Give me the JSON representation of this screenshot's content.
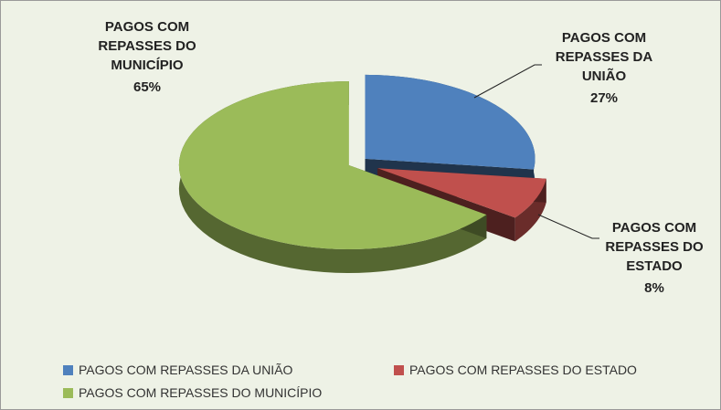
{
  "chart_data": {
    "type": "pie",
    "categories": [
      "PAGOS COM REPASSES DA UNIÃO",
      "PAGOS COM REPASSES DO ESTADO",
      "PAGOS COM REPASSES DO MUNICÍPIO"
    ],
    "values": [
      27,
      8,
      65
    ],
    "value_labels": [
      "27%",
      "8%",
      "65%"
    ],
    "colors": [
      "#4f81bd",
      "#c0504d",
      "#9bbb59"
    ],
    "legend": "bottom"
  }
}
